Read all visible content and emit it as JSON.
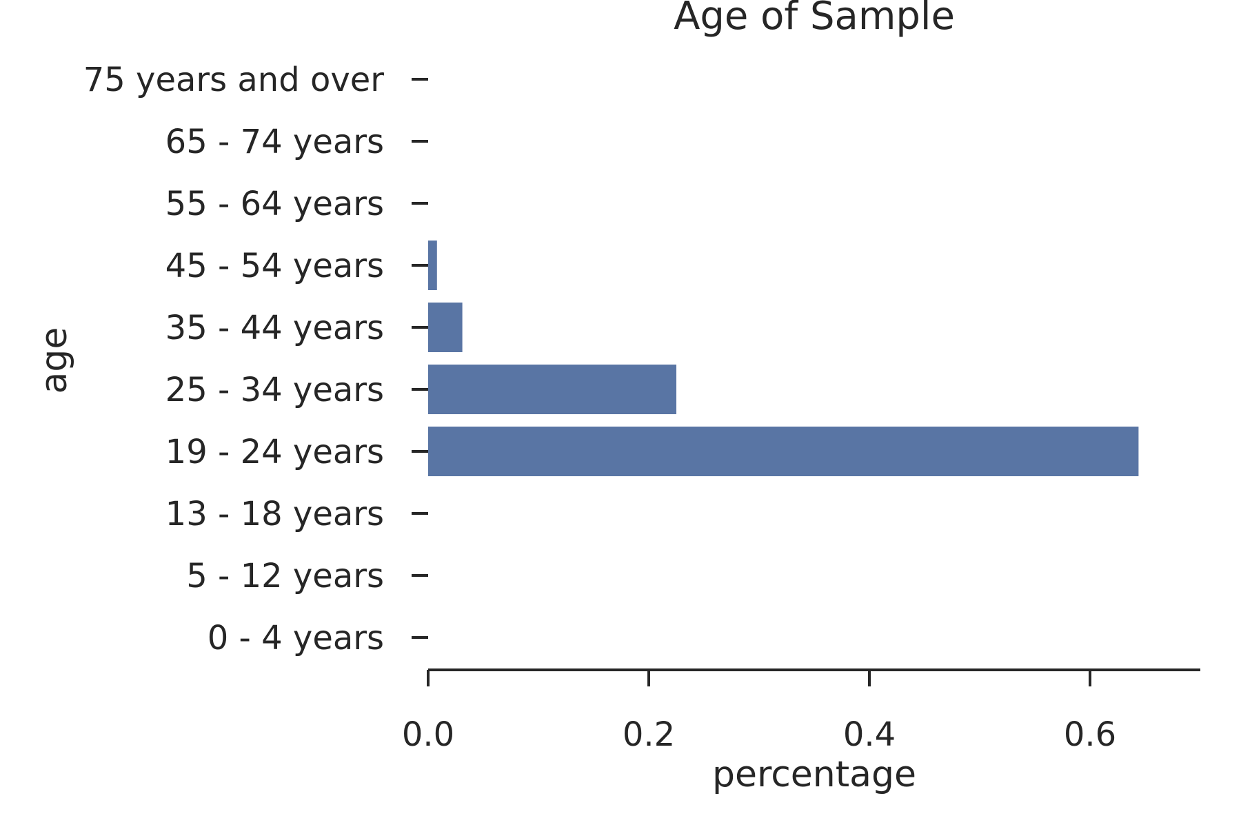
{
  "chart_data": {
    "type": "bar",
    "orientation": "horizontal",
    "title": "Age of Sample",
    "xlabel": "percentage",
    "ylabel": "age",
    "categories": [
      "75 years and over",
      "65 - 74 years",
      "55 - 64 years",
      "45 - 54 years",
      "35 - 44 years",
      "25 - 34 years",
      "19 - 24 years",
      "13 - 18 years",
      "5 - 12 years",
      "0 - 4 years"
    ],
    "values": [
      0,
      0,
      0,
      0.008,
      0.031,
      0.225,
      0.644,
      0,
      0,
      0
    ],
    "xlim": [
      0,
      0.7
    ],
    "xticks": [
      "0.0",
      "0.2",
      "0.4",
      "0.6"
    ],
    "xtick_values": [
      0,
      0.2,
      0.4,
      0.6
    ],
    "bar_color": "#5975a4",
    "grid": false,
    "legend": "none"
  }
}
